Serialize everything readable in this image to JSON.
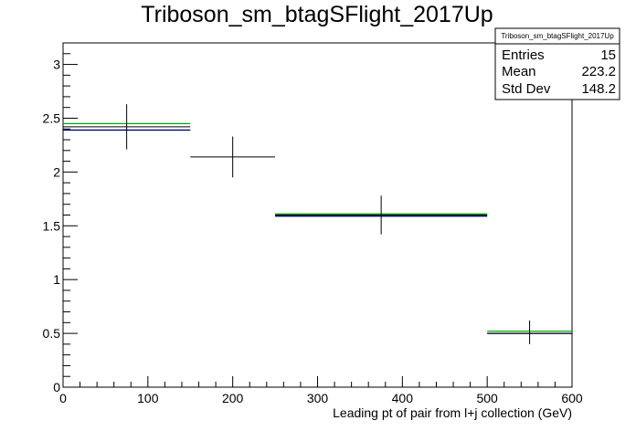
{
  "chart_data": {
    "type": "histogram",
    "title": "Triboson_sm_btagSFlight_2017Up",
    "xlabel": "Leading pt of pair from l+j collection (GeV)",
    "ylabel": "",
    "xlim": [
      0,
      600
    ],
    "ylim": [
      0,
      3.2
    ],
    "x_ticks": [
      "0",
      "100",
      "200",
      "300",
      "400",
      "500",
      "600"
    ],
    "y_ticks": [
      "0",
      "0.5",
      "1",
      "1.5",
      "2",
      "2.5",
      "3"
    ],
    "grid": false,
    "legend": "none",
    "stats_box": {
      "title": "Triboson_sm_btagSFlight_2017Up",
      "rows": [
        {
          "label": "Entries",
          "value": "15"
        },
        {
          "label": "Mean",
          "value": "223.2"
        },
        {
          "label": "Std Dev",
          "value": "148.2"
        }
      ]
    },
    "data_points": [
      {
        "x": 75,
        "xlo": 0,
        "xhi": 150,
        "y": 2.42,
        "ylo": 2.21,
        "yhi": 2.63
      },
      {
        "x": 200,
        "xlo": 150,
        "xhi": 250,
        "y": 2.14,
        "ylo": 1.95,
        "yhi": 2.33
      },
      {
        "x": 375,
        "xlo": 250,
        "xhi": 500,
        "y": 1.6,
        "ylo": 1.42,
        "yhi": 1.78
      },
      {
        "x": 550,
        "xlo": 500,
        "xhi": 600,
        "y": 0.5,
        "ylo": 0.4,
        "yhi": 0.62
      }
    ],
    "series": [
      {
        "color": "#00aa00",
        "bins": [
          {
            "xlo": 0,
            "xhi": 150,
            "y": 2.45
          },
          {
            "xlo": 250,
            "xhi": 500,
            "y": 1.61
          },
          {
            "xlo": 500,
            "xhi": 600,
            "y": 0.52
          }
        ]
      },
      {
        "color": "#000080",
        "bins": [
          {
            "xlo": 0,
            "xhi": 150,
            "y": 2.39
          },
          {
            "xlo": 250,
            "xhi": 500,
            "y": 1.59
          },
          {
            "xlo": 500,
            "xhi": 600,
            "y": 0.5
          }
        ]
      }
    ]
  }
}
